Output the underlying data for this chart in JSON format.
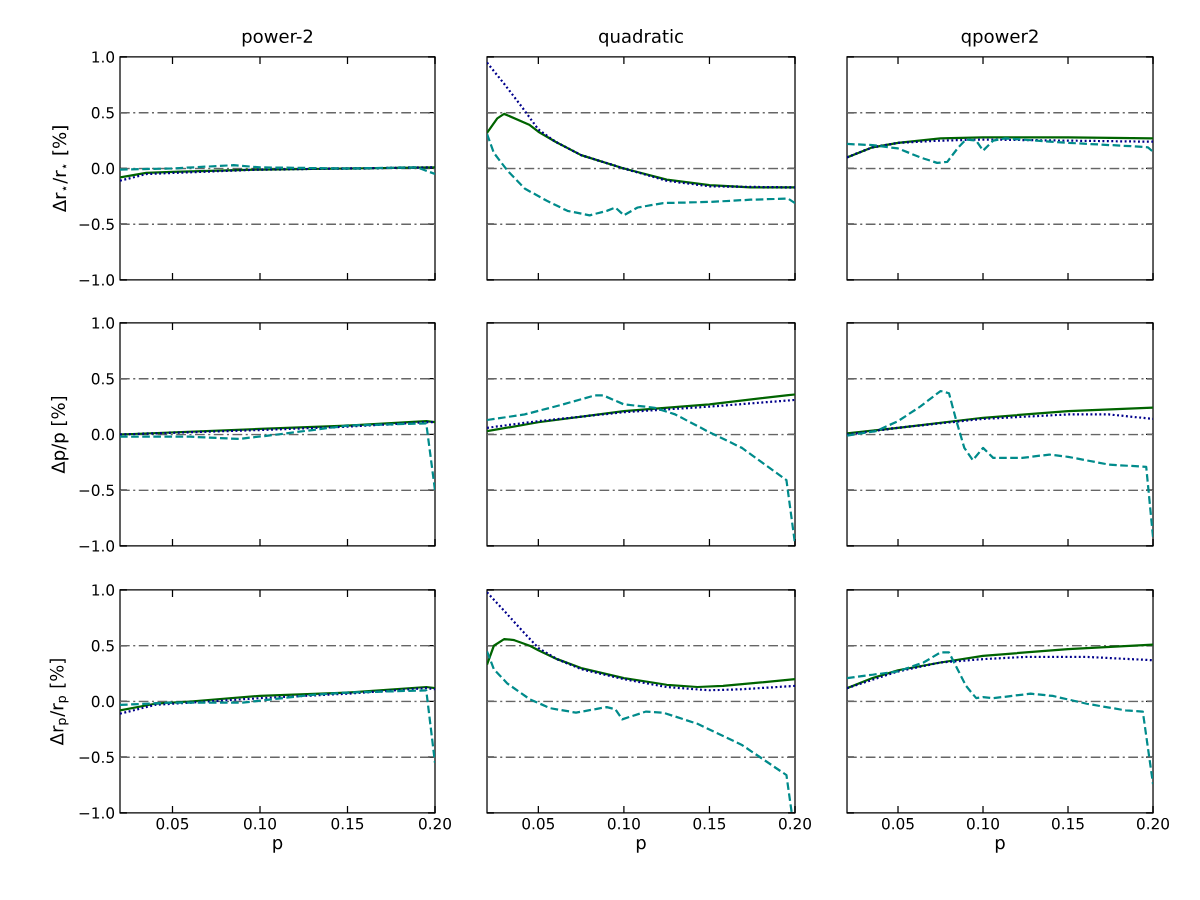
{
  "chart_data": [
    {
      "type": "line",
      "title": "power-2",
      "ylabel": "Δr$_{⋆}$/r$_{⋆}$ [%]",
      "tick_labels": "y",
      "xlim": [
        0.02,
        0.2
      ],
      "ylim": [
        -1,
        1
      ],
      "xticks": [
        {
          "value": 0.05,
          "label": null
        },
        {
          "value": 0.1,
          "label": null
        },
        {
          "value": 0.15,
          "label": null
        },
        {
          "value": 0.2,
          "label": null
        }
      ],
      "yticks": [
        {
          "value": -1,
          "label": "−1.0"
        },
        {
          "value": -0.5,
          "label": "−0.5"
        },
        {
          "value": 0,
          "label": "0.0"
        },
        {
          "value": 0.5,
          "label": "0.5"
        },
        {
          "value": 1,
          "label": "1.0"
        }
      ],
      "ref_lines": [
        {
          "axis": "y",
          "value": 0.5,
          "color": "#666666",
          "line_style": "dashdot"
        },
        {
          "axis": "y",
          "value": 0,
          "color": "#666666",
          "line_style": "dashdot"
        },
        {
          "axis": "y",
          "value": -0.5,
          "color": "#666666",
          "line_style": "dashdot"
        }
      ],
      "series": [
        {
          "color": "#006400",
          "line_style": "solid",
          "x": [
            0.02,
            0.035,
            0.05,
            0.1,
            0.15,
            0.2
          ],
          "values": [
            -0.08,
            -0.04,
            -0.03,
            -0.01,
            0,
            0.01
          ]
        },
        {
          "color": "#00008b",
          "line_style": "dotted",
          "x": [
            0.02,
            0.035,
            0.05,
            0.1,
            0.15,
            0.2
          ],
          "values": [
            -0.11,
            -0.05,
            -0.04,
            -0.01,
            0,
            0.01
          ]
        },
        {
          "color": "#008b8b",
          "line_style": "dashed",
          "x": [
            0.02,
            0.05,
            0.085,
            0.1,
            0.15,
            0.19,
            0.2
          ],
          "values": [
            -0.01,
            0,
            0.03,
            0.01,
            0,
            0.01,
            -0.05
          ]
        }
      ]
    },
    {
      "type": "line",
      "title": "quadratic",
      "tick_labels": false,
      "xlim": [
        0.02,
        0.2
      ],
      "ylim": [
        -1,
        1
      ],
      "xticks": [
        {
          "value": 0.05,
          "label": null
        },
        {
          "value": 0.1,
          "label": null
        },
        {
          "value": 0.15,
          "label": null
        },
        {
          "value": 0.2,
          "label": null
        }
      ],
      "yticks": [
        {
          "value": -1,
          "label": null
        },
        {
          "value": -0.5,
          "label": null
        },
        {
          "value": 0,
          "label": null
        },
        {
          "value": 0.5,
          "label": null
        },
        {
          "value": 1,
          "label": null
        }
      ],
      "ref_lines": [
        {
          "axis": "y",
          "value": 0.5,
          "color": "#666666",
          "line_style": "dashdot"
        },
        {
          "axis": "y",
          "value": 0,
          "color": "#666666",
          "line_style": "dashdot"
        },
        {
          "axis": "y",
          "value": -0.5,
          "color": "#666666",
          "line_style": "dashdot"
        }
      ],
      "series": [
        {
          "color": "#006400",
          "line_style": "solid",
          "x": [
            0.02,
            0.026,
            0.03,
            0.045,
            0.05,
            0.06,
            0.075,
            0.1,
            0.125,
            0.15,
            0.174,
            0.2
          ],
          "values": [
            0.32,
            0.45,
            0.49,
            0.39,
            0.33,
            0.24,
            0.12,
            0,
            -0.1,
            -0.15,
            -0.17,
            -0.17
          ]
        },
        {
          "color": "#00008b",
          "line_style": "dotted",
          "x": [
            0.02,
            0.03,
            0.04,
            0.05,
            0.06,
            0.075,
            0.1,
            0.125,
            0.15,
            0.2
          ],
          "values": [
            0.95,
            0.76,
            0.56,
            0.35,
            0.24,
            0.12,
            0,
            -0.11,
            -0.16,
            -0.17
          ]
        },
        {
          "color": "#008b8b",
          "line_style": "dashed",
          "x": [
            0.02,
            0.024,
            0.032,
            0.042,
            0.055,
            0.067,
            0.08,
            0.09,
            0.095,
            0.1,
            0.108,
            0.123,
            0.15,
            0.174,
            0.196,
            0.2
          ],
          "values": [
            0.31,
            0.14,
            -0.02,
            -0.18,
            -0.29,
            -0.38,
            -0.42,
            -0.38,
            -0.35,
            -0.42,
            -0.35,
            -0.31,
            -0.3,
            -0.28,
            -0.27,
            -0.31
          ]
        }
      ]
    },
    {
      "type": "line",
      "title": "qpower2",
      "tick_labels": false,
      "xlim": [
        0.02,
        0.2
      ],
      "ylim": [
        -1,
        1
      ],
      "xticks": [
        {
          "value": 0.05,
          "label": null
        },
        {
          "value": 0.1,
          "label": null
        },
        {
          "value": 0.15,
          "label": null
        },
        {
          "value": 0.2,
          "label": null
        }
      ],
      "yticks": [
        {
          "value": -1,
          "label": null
        },
        {
          "value": -0.5,
          "label": null
        },
        {
          "value": 0,
          "label": null
        },
        {
          "value": 0.5,
          "label": null
        },
        {
          "value": 1,
          "label": null
        }
      ],
      "ref_lines": [
        {
          "axis": "y",
          "value": 0.5,
          "color": "#666666",
          "line_style": "dashdot"
        },
        {
          "axis": "y",
          "value": 0,
          "color": "#666666",
          "line_style": "dashdot"
        },
        {
          "axis": "y",
          "value": -0.5,
          "color": "#666666",
          "line_style": "dashdot"
        }
      ],
      "series": [
        {
          "color": "#006400",
          "line_style": "solid",
          "x": [
            0.02,
            0.035,
            0.05,
            0.075,
            0.1,
            0.15,
            0.2
          ],
          "values": [
            0.1,
            0.19,
            0.23,
            0.27,
            0.28,
            0.28,
            0.27
          ]
        },
        {
          "color": "#00008b",
          "line_style": "dotted",
          "x": [
            0.02,
            0.035,
            0.05,
            0.075,
            0.1,
            0.15,
            0.2
          ],
          "values": [
            0.1,
            0.19,
            0.23,
            0.25,
            0.26,
            0.25,
            0.24
          ]
        },
        {
          "color": "#008b8b",
          "line_style": "dashed",
          "x": [
            0.02,
            0.035,
            0.05,
            0.063,
            0.073,
            0.079,
            0.085,
            0.09,
            0.096,
            0.1,
            0.106,
            0.113,
            0.15,
            0.187,
            0.197,
            0.2
          ],
          "values": [
            0.22,
            0.21,
            0.18,
            0.1,
            0.05,
            0.06,
            0.18,
            0.26,
            0.25,
            0.16,
            0.25,
            0.27,
            0.23,
            0.2,
            0.19,
            0.15
          ]
        }
      ]
    },
    {
      "type": "line",
      "ylabel": "Δp/p [%]",
      "tick_labels": "y",
      "xlim": [
        0.02,
        0.2
      ],
      "ylim": [
        -1,
        1
      ],
      "xticks": [
        {
          "value": 0.05,
          "label": null
        },
        {
          "value": 0.1,
          "label": null
        },
        {
          "value": 0.15,
          "label": null
        },
        {
          "value": 0.2,
          "label": null
        }
      ],
      "yticks": [
        {
          "value": -1,
          "label": "−1.0"
        },
        {
          "value": -0.5,
          "label": "−0.5"
        },
        {
          "value": 0,
          "label": "0.0"
        },
        {
          "value": 0.5,
          "label": "0.5"
        },
        {
          "value": 1,
          "label": "1.0"
        }
      ],
      "ref_lines": [
        {
          "axis": "y",
          "value": 0.5,
          "color": "#666666",
          "line_style": "dashdot"
        },
        {
          "axis": "y",
          "value": 0,
          "color": "#666666",
          "line_style": "dashdot"
        },
        {
          "axis": "y",
          "value": -0.5,
          "color": "#666666",
          "line_style": "dashdot"
        }
      ],
      "series": [
        {
          "color": "#006400",
          "line_style": "solid",
          "x": [
            0.02,
            0.1,
            0.15,
            0.195,
            0.2
          ],
          "values": [
            0,
            0.05,
            0.08,
            0.12,
            0.11
          ]
        },
        {
          "color": "#00008b",
          "line_style": "dotted",
          "x": [
            0.02,
            0.1,
            0.15,
            0.195,
            0.2
          ],
          "values": [
            0,
            0.04,
            0.07,
            0.11,
            0.11
          ]
        },
        {
          "color": "#008b8b",
          "line_style": "dashed",
          "x": [
            0.02,
            0.06,
            0.088,
            0.11,
            0.15,
            0.195,
            0.2
          ],
          "values": [
            -0.02,
            -0.02,
            -0.04,
            0,
            0.08,
            0.1,
            -0.5
          ]
        }
      ]
    },
    {
      "type": "line",
      "tick_labels": false,
      "xlim": [
        0.02,
        0.2
      ],
      "ylim": [
        -1,
        1
      ],
      "xticks": [
        {
          "value": 0.05,
          "label": null
        },
        {
          "value": 0.1,
          "label": null
        },
        {
          "value": 0.15,
          "label": null
        },
        {
          "value": 0.2,
          "label": null
        }
      ],
      "yticks": [
        {
          "value": -1,
          "label": null
        },
        {
          "value": -0.5,
          "label": null
        },
        {
          "value": 0,
          "label": null
        },
        {
          "value": 0.5,
          "label": null
        },
        {
          "value": 1,
          "label": null
        }
      ],
      "ref_lines": [
        {
          "axis": "y",
          "value": 0.5,
          "color": "#666666",
          "line_style": "dashdot"
        },
        {
          "axis": "y",
          "value": 0,
          "color": "#666666",
          "line_style": "dashdot"
        },
        {
          "axis": "y",
          "value": -0.5,
          "color": "#666666",
          "line_style": "dashdot"
        }
      ],
      "series": [
        {
          "color": "#006400",
          "line_style": "solid",
          "x": [
            0.02,
            0.05,
            0.1,
            0.15,
            0.2
          ],
          "values": [
            0.03,
            0.11,
            0.21,
            0.27,
            0.36
          ]
        },
        {
          "color": "#00008b",
          "line_style": "dotted",
          "x": [
            0.02,
            0.05,
            0.1,
            0.15,
            0.2
          ],
          "values": [
            0.06,
            0.12,
            0.2,
            0.25,
            0.31
          ]
        },
        {
          "color": "#008b8b",
          "line_style": "dashed",
          "x": [
            0.02,
            0.042,
            0.062,
            0.083,
            0.088,
            0.1,
            0.118,
            0.13,
            0.15,
            0.169,
            0.195,
            0.2
          ],
          "values": [
            0.13,
            0.18,
            0.26,
            0.35,
            0.35,
            0.27,
            0.24,
            0.18,
            0.02,
            -0.12,
            -0.41,
            -0.98
          ]
        }
      ]
    },
    {
      "type": "line",
      "tick_labels": false,
      "xlim": [
        0.02,
        0.2
      ],
      "ylim": [
        -1,
        1
      ],
      "xticks": [
        {
          "value": 0.05,
          "label": null
        },
        {
          "value": 0.1,
          "label": null
        },
        {
          "value": 0.15,
          "label": null
        },
        {
          "value": 0.2,
          "label": null
        }
      ],
      "yticks": [
        {
          "value": -1,
          "label": null
        },
        {
          "value": -0.5,
          "label": null
        },
        {
          "value": 0,
          "label": null
        },
        {
          "value": 0.5,
          "label": null
        },
        {
          "value": 1,
          "label": null
        }
      ],
      "ref_lines": [
        {
          "axis": "y",
          "value": 0.5,
          "color": "#666666",
          "line_style": "dashdot"
        },
        {
          "axis": "y",
          "value": 0,
          "color": "#666666",
          "line_style": "dashdot"
        },
        {
          "axis": "y",
          "value": -0.5,
          "color": "#666666",
          "line_style": "dashdot"
        }
      ],
      "series": [
        {
          "color": "#006400",
          "line_style": "solid",
          "x": [
            0.02,
            0.05,
            0.1,
            0.15,
            0.2
          ],
          "values": [
            0.01,
            0.06,
            0.15,
            0.21,
            0.24
          ]
        },
        {
          "color": "#00008b",
          "line_style": "dotted",
          "x": [
            0.02,
            0.05,
            0.1,
            0.15,
            0.174,
            0.2
          ],
          "values": [
            0,
            0.06,
            0.14,
            0.18,
            0.18,
            0.14
          ]
        },
        {
          "color": "#008b8b",
          "line_style": "dashed",
          "x": [
            0.02,
            0.037,
            0.05,
            0.063,
            0.075,
            0.08,
            0.084,
            0.089,
            0.094,
            0.1,
            0.106,
            0.123,
            0.139,
            0.15,
            0.174,
            0.196,
            0.2
          ],
          "values": [
            -0.01,
            0.03,
            0.12,
            0.25,
            0.39,
            0.37,
            0.14,
            -0.12,
            -0.23,
            -0.12,
            -0.21,
            -0.21,
            -0.18,
            -0.2,
            -0.27,
            -0.29,
            -0.92
          ]
        }
      ]
    },
    {
      "type": "line",
      "xlabel": "p",
      "ylabel": "Δr$_{p}$/r$_{p}$ [%]",
      "xlim": [
        0.02,
        0.2
      ],
      "ylim": [
        -1,
        1
      ],
      "xticks": [
        {
          "value": 0.05,
          "label": "0.05"
        },
        {
          "value": 0.1,
          "label": "0.10"
        },
        {
          "value": 0.15,
          "label": "0.15"
        },
        {
          "value": 0.2,
          "label": "0.20"
        }
      ],
      "yticks": [
        {
          "value": -1,
          "label": "−1.0"
        },
        {
          "value": -0.5,
          "label": "−0.5"
        },
        {
          "value": 0,
          "label": "0.0"
        },
        {
          "value": 0.5,
          "label": "0.5"
        },
        {
          "value": 1,
          "label": "1.0"
        }
      ],
      "ref_lines": [
        {
          "axis": "y",
          "value": 0.5,
          "color": "#666666",
          "line_style": "dashdot"
        },
        {
          "axis": "y",
          "value": 0,
          "color": "#666666",
          "line_style": "dashdot"
        },
        {
          "axis": "y",
          "value": -0.5,
          "color": "#666666",
          "line_style": "dashdot"
        }
      ],
      "series": [
        {
          "color": "#006400",
          "line_style": "solid",
          "x": [
            0.02,
            0.04,
            0.06,
            0.1,
            0.15,
            0.195,
            0.2
          ],
          "values": [
            -0.08,
            -0.02,
            0,
            0.05,
            0.08,
            0.13,
            0.12
          ]
        },
        {
          "color": "#00008b",
          "line_style": "dotted",
          "x": [
            0.02,
            0.04,
            0.06,
            0.1,
            0.15,
            0.195,
            0.2
          ],
          "values": [
            -0.11,
            -0.03,
            -0.01,
            0.03,
            0.07,
            0.12,
            0.11
          ]
        },
        {
          "color": "#008b8b",
          "line_style": "dashed",
          "x": [
            0.02,
            0.05,
            0.09,
            0.13,
            0.15,
            0.195,
            0.2
          ],
          "values": [
            -0.03,
            -0.01,
            -0.01,
            0.06,
            0.08,
            0.1,
            -0.55
          ]
        }
      ]
    },
    {
      "type": "line",
      "xlabel": "p",
      "tick_labels": "x",
      "xlim": [
        0.02,
        0.2
      ],
      "ylim": [
        -1,
        1
      ],
      "xticks": [
        {
          "value": 0.05,
          "label": "0.05"
        },
        {
          "value": 0.1,
          "label": "0.10"
        },
        {
          "value": 0.15,
          "label": "0.15"
        },
        {
          "value": 0.2,
          "label": "0.20"
        }
      ],
      "yticks": [
        {
          "value": -1,
          "label": null
        },
        {
          "value": -0.5,
          "label": null
        },
        {
          "value": 0,
          "label": null
        },
        {
          "value": 0.5,
          "label": null
        },
        {
          "value": 1,
          "label": null
        }
      ],
      "ref_lines": [
        {
          "axis": "y",
          "value": 0.5,
          "color": "#666666",
          "line_style": "dashdot"
        },
        {
          "axis": "y",
          "value": 0,
          "color": "#666666",
          "line_style": "dashdot"
        },
        {
          "axis": "y",
          "value": -0.5,
          "color": "#666666",
          "line_style": "dashdot"
        }
      ],
      "series": [
        {
          "color": "#006400",
          "line_style": "solid",
          "x": [
            0.02,
            0.024,
            0.03,
            0.036,
            0.045,
            0.05,
            0.061,
            0.075,
            0.1,
            0.125,
            0.143,
            0.158,
            0.2
          ],
          "values": [
            0.33,
            0.5,
            0.56,
            0.55,
            0.5,
            0.46,
            0.38,
            0.3,
            0.21,
            0.15,
            0.13,
            0.14,
            0.2
          ]
        },
        {
          "color": "#00008b",
          "line_style": "dotted",
          "x": [
            0.02,
            0.032,
            0.042,
            0.05,
            0.061,
            0.075,
            0.1,
            0.125,
            0.15,
            0.169,
            0.2
          ],
          "values": [
            0.98,
            0.78,
            0.61,
            0.48,
            0.38,
            0.29,
            0.2,
            0.13,
            0.1,
            0.11,
            0.14
          ]
        },
        {
          "color": "#008b8b",
          "line_style": "dashed",
          "x": [
            0.02,
            0.024,
            0.032,
            0.045,
            0.057,
            0.072,
            0.09,
            0.095,
            0.099,
            0.113,
            0.123,
            0.143,
            0.169,
            0.195,
            0.198
          ],
          "values": [
            0.45,
            0.29,
            0.16,
            0.02,
            -0.06,
            -0.1,
            -0.05,
            -0.07,
            -0.16,
            -0.09,
            -0.1,
            -0.2,
            -0.39,
            -0.66,
            -0.99
          ]
        }
      ]
    },
    {
      "type": "line",
      "xlabel": "p",
      "tick_labels": "x",
      "xlim": [
        0.02,
        0.2
      ],
      "ylim": [
        -1,
        1
      ],
      "xticks": [
        {
          "value": 0.05,
          "label": "0.05"
        },
        {
          "value": 0.1,
          "label": "0.10"
        },
        {
          "value": 0.15,
          "label": "0.15"
        },
        {
          "value": 0.2,
          "label": "0.20"
        }
      ],
      "yticks": [
        {
          "value": -1,
          "label": null
        },
        {
          "value": -0.5,
          "label": null
        },
        {
          "value": 0,
          "label": null
        },
        {
          "value": 0.5,
          "label": null
        },
        {
          "value": 1,
          "label": null
        }
      ],
      "ref_lines": [
        {
          "axis": "y",
          "value": 0.5,
          "color": "#666666",
          "line_style": "dashdot"
        },
        {
          "axis": "y",
          "value": 0,
          "color": "#666666",
          "line_style": "dashdot"
        },
        {
          "axis": "y",
          "value": -0.5,
          "color": "#666666",
          "line_style": "dashdot"
        }
      ],
      "series": [
        {
          "color": "#006400",
          "line_style": "solid",
          "x": [
            0.02,
            0.035,
            0.05,
            0.075,
            0.1,
            0.15,
            0.2
          ],
          "values": [
            0.12,
            0.21,
            0.28,
            0.35,
            0.41,
            0.47,
            0.51
          ]
        },
        {
          "color": "#00008b",
          "line_style": "dotted",
          "x": [
            0.02,
            0.05,
            0.075,
            0.1,
            0.125,
            0.161,
            0.2
          ],
          "values": [
            0.12,
            0.27,
            0.35,
            0.38,
            0.4,
            0.4,
            0.37
          ]
        },
        {
          "color": "#008b8b",
          "line_style": "dashed",
          "x": [
            0.02,
            0.035,
            0.05,
            0.065,
            0.075,
            0.08,
            0.085,
            0.09,
            0.096,
            0.1,
            0.106,
            0.128,
            0.141,
            0.161,
            0.184,
            0.194,
            0.2
          ],
          "values": [
            0.21,
            0.24,
            0.27,
            0.35,
            0.44,
            0.44,
            0.29,
            0.14,
            0.03,
            0.04,
            0.03,
            0.07,
            0.05,
            -0.02,
            -0.08,
            -0.09,
            -0.74
          ]
        }
      ]
    }
  ]
}
